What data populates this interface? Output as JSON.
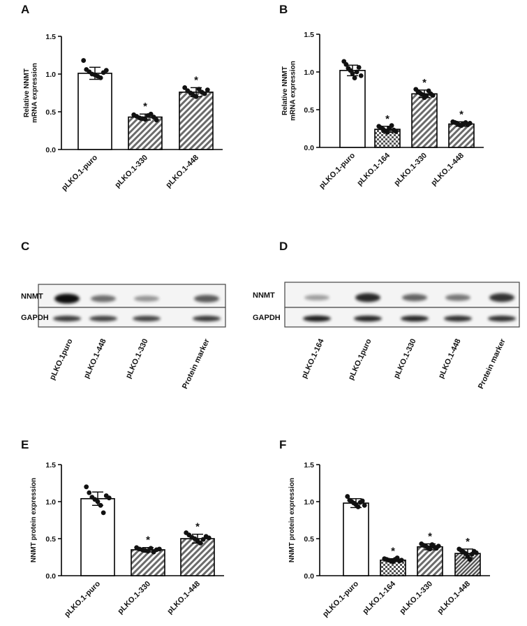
{
  "panels": [
    {
      "id": "A",
      "letter": "A"
    },
    {
      "id": "B",
      "letter": "B"
    },
    {
      "id": "C",
      "letter": "C"
    },
    {
      "id": "D",
      "letter": "D"
    },
    {
      "id": "E",
      "letter": "E"
    },
    {
      "id": "F",
      "letter": "F"
    }
  ],
  "chart_data": [
    {
      "panel": "A",
      "type": "bar",
      "ylabel_lines": [
        "Relative NNMT",
        "mRNA expression"
      ],
      "ylim": [
        0,
        1.5
      ],
      "yticks": [
        "0.0",
        "0.5",
        "1.0",
        "1.5"
      ],
      "categories": [
        "pLKO.1-puro",
        "pLKO.1-330",
        "pLKO.1-448"
      ],
      "values": [
        1.01,
        0.43,
        0.76
      ],
      "errors": [
        0.08,
        0.04,
        0.06
      ],
      "fills": [
        "white",
        "diag",
        "diag"
      ],
      "significance": [
        "",
        "*",
        "*"
      ],
      "points": [
        [
          1.18,
          1.06,
          1.03,
          1.0,
          0.99,
          0.97,
          0.95,
          1.02,
          1.05
        ],
        [
          0.46,
          0.44,
          0.42,
          0.41,
          0.4,
          0.45,
          0.47,
          0.43,
          0.39
        ],
        [
          0.82,
          0.78,
          0.75,
          0.72,
          0.7,
          0.8,
          0.76,
          0.74,
          0.79
        ]
      ]
    },
    {
      "panel": "B",
      "type": "bar",
      "ylabel_lines": [
        "Relative NNMT",
        "mRNA expression"
      ],
      "ylim": [
        0,
        1.5
      ],
      "yticks": [
        "0.0",
        "0.5",
        "1.0",
        "1.5"
      ],
      "categories": [
        "pLKO.1-puro",
        "pLKO.1-164",
        "pLKO.1-330",
        "pLKO.1-448"
      ],
      "values": [
        1.02,
        0.24,
        0.71,
        0.31
      ],
      "errors": [
        0.07,
        0.04,
        0.05,
        0.03
      ],
      "fills": [
        "white",
        "checker",
        "diag",
        "diag"
      ],
      "significance": [
        "",
        "*",
        "*",
        "*"
      ],
      "points": [
        [
          1.14,
          1.1,
          1.05,
          1.02,
          0.98,
          0.92,
          1.0,
          1.06,
          0.95
        ],
        [
          0.28,
          0.26,
          0.24,
          0.22,
          0.2,
          0.25,
          0.29,
          0.23,
          0.21
        ],
        [
          0.77,
          0.74,
          0.72,
          0.7,
          0.66,
          0.68,
          0.75,
          0.71,
          0.69
        ],
        [
          0.34,
          0.33,
          0.32,
          0.3,
          0.29,
          0.31,
          0.33,
          0.3,
          0.32
        ]
      ]
    },
    {
      "panel": "E",
      "type": "bar",
      "ylabel_lines": [
        "NNMT protein expression"
      ],
      "ylim": [
        0,
        1.5
      ],
      "yticks": [
        "0.0",
        "0.5",
        "1.0",
        "1.5"
      ],
      "categories": [
        "pLKO.1-puro",
        "pLKO.1-330",
        "pLKO.1-448"
      ],
      "values": [
        1.04,
        0.35,
        0.5
      ],
      "errors": [
        0.09,
        0.03,
        0.06
      ],
      "fills": [
        "white",
        "diag",
        "diag"
      ],
      "significance": [
        "",
        "*",
        "*"
      ],
      "points": [
        [
          1.2,
          1.12,
          1.06,
          1.03,
          1.0,
          0.95,
          0.85,
          1.08,
          1.05
        ],
        [
          0.38,
          0.36,
          0.35,
          0.34,
          0.33,
          0.37,
          0.32,
          0.35,
          0.36
        ],
        [
          0.58,
          0.55,
          0.52,
          0.5,
          0.47,
          0.44,
          0.49,
          0.53,
          0.51
        ]
      ]
    },
    {
      "panel": "F",
      "type": "bar",
      "ylabel_lines": [
        "NNMT protein expression"
      ],
      "ylim": [
        0,
        1.5
      ],
      "yticks": [
        "0.0",
        "0.5",
        "1.0",
        "1.5"
      ],
      "categories": [
        "pLKO.1-puro",
        "pLKO.1-164",
        "pLKO.1-330",
        "pLKO.1-448"
      ],
      "values": [
        0.98,
        0.21,
        0.39,
        0.3
      ],
      "errors": [
        0.06,
        0.02,
        0.04,
        0.06
      ],
      "fills": [
        "white",
        "checker",
        "diag",
        "dense"
      ],
      "significance": [
        "",
        "*",
        "*",
        "*"
      ],
      "points": [
        [
          1.07,
          1.02,
          1.0,
          0.98,
          0.96,
          0.93,
          0.99,
          1.01,
          0.95
        ],
        [
          0.23,
          0.22,
          0.21,
          0.2,
          0.19,
          0.22,
          0.24,
          0.2,
          0.21
        ],
        [
          0.43,
          0.41,
          0.4,
          0.38,
          0.36,
          0.42,
          0.39,
          0.37,
          0.4
        ],
        [
          0.36,
          0.34,
          0.32,
          0.3,
          0.26,
          0.22,
          0.29,
          0.33,
          0.31
        ]
      ]
    }
  ],
  "blots": [
    {
      "panel": "C",
      "row_labels": [
        "NNMT",
        "GAPDH"
      ],
      "lanes": [
        "pLKO.1puro",
        "pLKO.1-448",
        "pLKO.1-330",
        "Protein marker"
      ],
      "nnmt_intensity": [
        1.0,
        0.5,
        0.3,
        0.6
      ],
      "gapdh_intensity": [
        0.75,
        0.7,
        0.7,
        0.75
      ]
    },
    {
      "panel": "D",
      "row_labels": [
        "NNMT",
        "GAPDH"
      ],
      "lanes": [
        "pLKO.1-164",
        "pLKO.1puro",
        "pLKO.1-330",
        "pLKO.1-448",
        "Protein marker"
      ],
      "nnmt_intensity": [
        0.25,
        0.85,
        0.55,
        0.45,
        0.8
      ],
      "gapdh_intensity": [
        0.9,
        0.85,
        0.85,
        0.8,
        0.8
      ]
    }
  ]
}
